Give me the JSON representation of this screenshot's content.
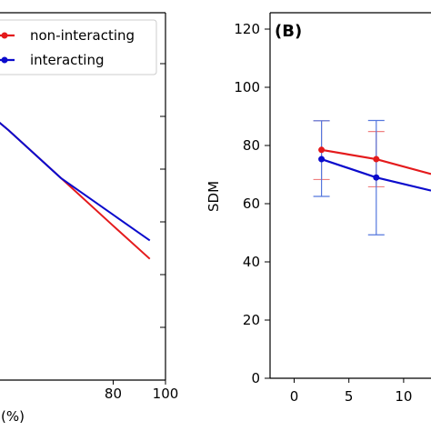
{
  "chart_data": [
    {
      "type": "line",
      "panel": "left",
      "xlabel": "(%)",
      "x_ticks": [
        "80",
        "100"
      ],
      "xlim": [
        0,
        100
      ],
      "legend": {
        "placement": "top-right",
        "entries": [
          "non-interacting",
          "interacting"
        ]
      },
      "series": [
        {
          "name": "non-interacting",
          "color": "#e41a1c",
          "x": [
            0,
            20,
            40,
            60,
            80,
            94
          ],
          "y": [
            0.9,
            0.8,
            0.68,
            0.55,
            0.42,
            0.33
          ]
        },
        {
          "name": "interacting",
          "color": "#0b0bcc",
          "x": [
            0,
            20,
            40,
            60,
            80,
            94
          ],
          "y": [
            0.9,
            0.8,
            0.68,
            0.55,
            0.45,
            0.38
          ]
        }
      ]
    },
    {
      "type": "line",
      "panel": "right",
      "panel_label": "(B)",
      "ylabel": "SDM",
      "ylim": [
        0,
        125
      ],
      "xlim": [
        -2.2,
        12.5
      ],
      "y_ticks": [
        0,
        20,
        40,
        60,
        80,
        100,
        120
      ],
      "x_ticks": [
        "0",
        "5",
        "10"
      ],
      "series": [
        {
          "name": "non-interacting",
          "color": "#e41a1c",
          "x": [
            2.5,
            7.5,
            12.5
          ],
          "y": [
            78.5,
            75.3,
            70.2
          ],
          "err_low": [
            68.3,
            65.8
          ],
          "err_high": [
            88.5,
            84.8
          ]
        },
        {
          "name": "interacting",
          "color": "#0b0bcc",
          "x": [
            2.5,
            7.5,
            12.5
          ],
          "y": [
            75.3,
            69.0,
            64.5
          ],
          "err_low": [
            62.5,
            49.3
          ],
          "err_high": [
            88.5,
            88.6
          ]
        }
      ]
    }
  ]
}
